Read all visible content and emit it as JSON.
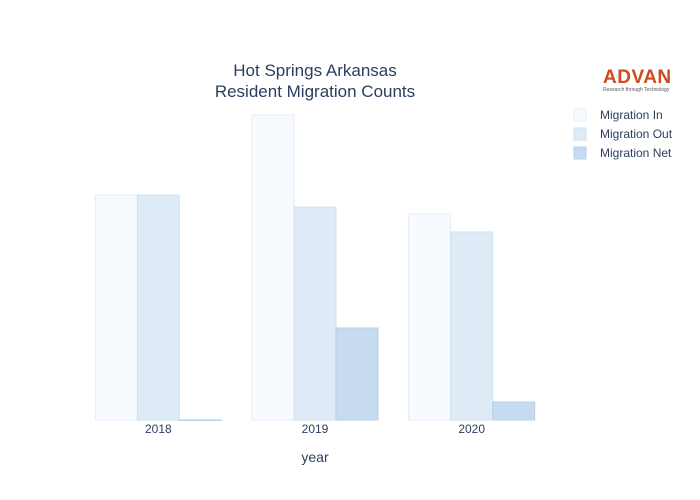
{
  "logo": {
    "name": "ADVAN",
    "tagline": "Research through Technology"
  },
  "chart_data": {
    "type": "bar",
    "title": "Hot Springs Arkansas",
    "subtitle": "Resident Migration Counts",
    "xlabel": "year",
    "ylabel": "",
    "categories": [
      "2018",
      "2019",
      "2020"
    ],
    "series": [
      {
        "name": "Migration In",
        "values": [
          225,
          305,
          206
        ],
        "color": "#f7fbff",
        "stroke": "#e3ecf6"
      },
      {
        "name": "Migration Out",
        "values": [
          225,
          213,
          188
        ],
        "color": "#deebf7",
        "stroke": "#d0e0f0"
      },
      {
        "name": "Migration Net",
        "values": [
          0,
          92,
          18
        ],
        "color": "#c6dbef",
        "stroke": "#b8d0e8"
      }
    ],
    "ylim": [
      0,
      305
    ],
    "grid": false,
    "yaxis_visible": false,
    "legend_position": "top-right"
  }
}
